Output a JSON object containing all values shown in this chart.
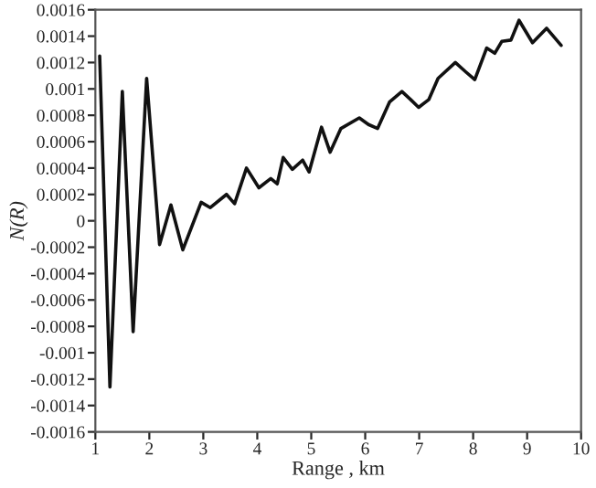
{
  "chart_data": {
    "type": "line",
    "xlabel": "Range , km",
    "ylabel": "N(R)",
    "xlim": [
      1,
      10
    ],
    "xticks": [
      1,
      2,
      3,
      4,
      5,
      6,
      7,
      8,
      9,
      10
    ],
    "ylim": [
      -0.0016,
      0.0016
    ],
    "yticks": [
      -0.0016,
      -0.0014,
      -0.0012,
      -0.001,
      -0.0008,
      -0.0006,
      -0.0004,
      -0.0002,
      0,
      0.0002,
      0.0004,
      0.0006,
      0.0008,
      0.001,
      0.0012,
      0.0014,
      0.0016
    ],
    "grid": false,
    "legend": false,
    "marker": "none",
    "line_style": "solid",
    "series": [
      {
        "color": "#111111",
        "x": [
          1.08,
          1.27,
          1.5,
          1.7,
          1.95,
          2.19,
          2.4,
          2.62,
          2.96,
          3.13,
          3.43,
          3.58,
          3.8,
          4.03,
          4.25,
          4.37,
          4.48,
          4.65,
          4.84,
          4.96,
          5.19,
          5.35,
          5.55,
          5.89,
          6.06,
          6.23,
          6.45,
          6.68,
          6.84,
          6.99,
          7.18,
          7.35,
          7.67,
          7.86,
          8.03,
          8.25,
          8.4,
          8.53,
          8.7,
          8.85,
          9.1,
          9.36,
          9.63
        ],
        "values": [
          0.00125,
          -0.00126,
          0.00098,
          -0.00084,
          0.00108,
          -0.00018,
          0.00012,
          -0.00022,
          0.00014,
          0.0001,
          0.0002,
          0.00013,
          0.0004,
          0.00025,
          0.00032,
          0.00028,
          0.00048,
          0.00039,
          0.00046,
          0.00037,
          0.00071,
          0.00052,
          0.0007,
          0.00078,
          0.00073,
          0.0007,
          0.0009,
          0.00098,
          0.00092,
          0.00086,
          0.00092,
          0.00108,
          0.0012,
          0.00113,
          0.00107,
          0.00131,
          0.00127,
          0.00136,
          0.00137,
          0.00152,
          0.00135,
          0.00146,
          0.00133
        ]
      }
    ]
  }
}
